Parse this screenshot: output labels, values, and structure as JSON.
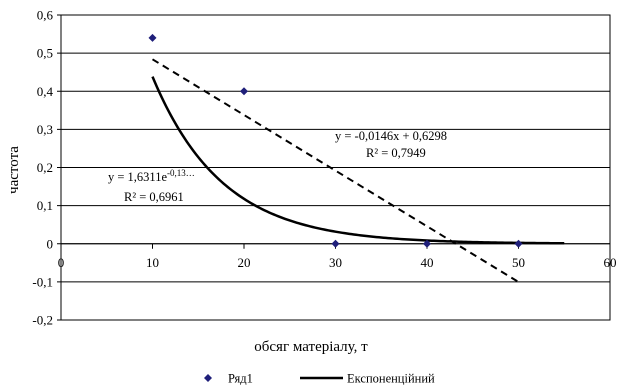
{
  "chart_data": {
    "type": "scatter",
    "xlabel": "обсяг матеріалу, т",
    "ylabel": "частота",
    "xlim": [
      0,
      60
    ],
    "ylim": [
      -0.2,
      0.6
    ],
    "x_ticks": [
      0,
      10,
      20,
      30,
      40,
      50,
      60
    ],
    "x_tick_labels": [
      "0",
      "10",
      "20",
      "30",
      "40",
      "50",
      "60"
    ],
    "y_ticks": [
      -0.2,
      -0.1,
      0,
      0.1,
      0.2,
      0.3,
      0.4,
      0.5,
      0.6
    ],
    "y_tick_labels": [
      "-0,2",
      "-0,1",
      "0",
      "0,1",
      "0,2",
      "0,3",
      "0,4",
      "0,5",
      "0,6"
    ],
    "grid": "horizontal",
    "series": [
      {
        "name": "Ряд1",
        "marker": "diamond",
        "color": "#1f1f7a",
        "x": [
          10,
          20,
          30,
          40,
          50
        ],
        "y": [
          0.54,
          0.4,
          0,
          0,
          0
        ]
      }
    ],
    "trendlines": [
      {
        "name": "Експоненційний",
        "kind": "exponential",
        "coef_a": 1.6311,
        "coef_b": -0.1314,
        "equation": "y = 1,6311e",
        "equation_exp": "-0,13…",
        "r2": "R² = 0,6961",
        "x_range": [
          10,
          55
        ],
        "line_style": "solid",
        "color": "#000000"
      },
      {
        "kind": "linear",
        "slope": -0.0146,
        "intercept": 0.6298,
        "equation": "y = -0,0146x + 0,6298",
        "r2": "R² = 0,7949",
        "x_range": [
          10,
          50
        ],
        "line_style": "dashed",
        "color": "#000000"
      }
    ],
    "legend": {
      "position": "bottom",
      "entries": [
        {
          "label": "Ряд1",
          "symbol": "diamond"
        },
        {
          "label": "Експоненційний",
          "symbol": "line"
        }
      ]
    }
  }
}
